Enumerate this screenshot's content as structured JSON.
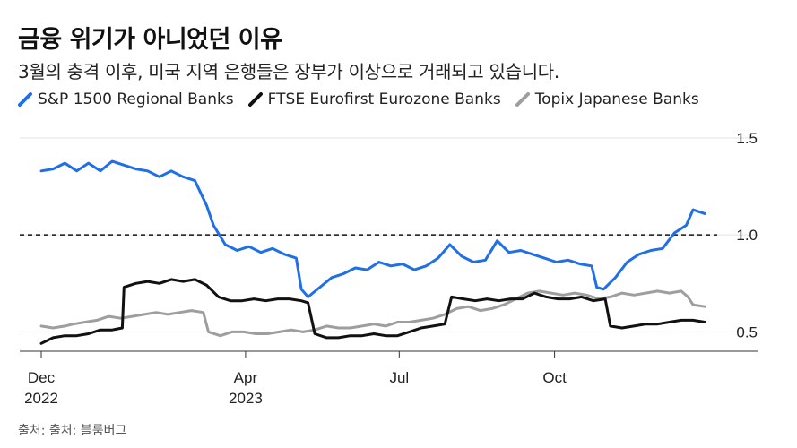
{
  "title": "금융 위기가 아니었던 이유",
  "subtitle": "3월의 충격 이후, 미국 지역 은행들은 장부가 이상으로 거래되고 있습니다.",
  "source": "출처: 출처: 블룸버그",
  "chart_data": {
    "type": "line",
    "title": "금융 위기가 아니었던 이유",
    "subtitle": "3월의 충격 이후, 미국 지역 은행들은 장부가 이상으로 거래되고 있습니다.",
    "ylim": [
      0.4,
      1.5
    ],
    "y_ticks": [
      1.5,
      1.0,
      0.5
    ],
    "y_tick_labels": [
      "1.5",
      "1.0",
      "0.5"
    ],
    "x_ticks": [
      {
        "date": "2022-12-01",
        "label": "Dec",
        "sublabel": "2022"
      },
      {
        "date": "2023-04-01",
        "label": "Apr",
        "sublabel": "2023"
      },
      {
        "date": "2023-07-01",
        "label": "Jul",
        "sublabel": ""
      },
      {
        "date": "2023-10-01",
        "label": "Oct",
        "sublabel": ""
      }
    ],
    "reference_line": {
      "y": 1.0,
      "style": "dashed"
    },
    "grid": true,
    "legend_position": "top-left",
    "series": [
      {
        "name": "S&P 1500 Regional Banks",
        "color": "#1f6fe8",
        "points": [
          [
            "2022-12-01",
            1.33
          ],
          [
            "2022-12-08",
            1.34
          ],
          [
            "2022-12-15",
            1.37
          ],
          [
            "2022-12-22",
            1.33
          ],
          [
            "2022-12-29",
            1.37
          ],
          [
            "2023-01-05",
            1.33
          ],
          [
            "2023-01-12",
            1.38
          ],
          [
            "2023-01-19",
            1.36
          ],
          [
            "2023-01-26",
            1.34
          ],
          [
            "2023-02-02",
            1.33
          ],
          [
            "2023-02-09",
            1.3
          ],
          [
            "2023-02-16",
            1.33
          ],
          [
            "2023-02-23",
            1.3
          ],
          [
            "2023-03-02",
            1.28
          ],
          [
            "2023-03-09",
            1.15
          ],
          [
            "2023-03-13",
            1.05
          ],
          [
            "2023-03-20",
            0.95
          ],
          [
            "2023-03-27",
            0.92
          ],
          [
            "2023-04-03",
            0.94
          ],
          [
            "2023-04-10",
            0.91
          ],
          [
            "2023-04-17",
            0.93
          ],
          [
            "2023-04-24",
            0.9
          ],
          [
            "2023-05-01",
            0.88
          ],
          [
            "2023-05-04",
            0.72
          ],
          [
            "2023-05-08",
            0.68
          ],
          [
            "2023-05-15",
            0.73
          ],
          [
            "2023-05-22",
            0.78
          ],
          [
            "2023-05-29",
            0.8
          ],
          [
            "2023-06-05",
            0.83
          ],
          [
            "2023-06-12",
            0.82
          ],
          [
            "2023-06-19",
            0.86
          ],
          [
            "2023-06-26",
            0.84
          ],
          [
            "2023-07-03",
            0.85
          ],
          [
            "2023-07-10",
            0.82
          ],
          [
            "2023-07-17",
            0.84
          ],
          [
            "2023-07-24",
            0.88
          ],
          [
            "2023-07-31",
            0.95
          ],
          [
            "2023-08-07",
            0.89
          ],
          [
            "2023-08-14",
            0.86
          ],
          [
            "2023-08-21",
            0.87
          ],
          [
            "2023-08-28",
            0.97
          ],
          [
            "2023-09-04",
            0.91
          ],
          [
            "2023-09-11",
            0.92
          ],
          [
            "2023-09-18",
            0.9
          ],
          [
            "2023-09-25",
            0.88
          ],
          [
            "2023-10-02",
            0.86
          ],
          [
            "2023-10-09",
            0.87
          ],
          [
            "2023-10-16",
            0.85
          ],
          [
            "2023-10-23",
            0.84
          ],
          [
            "2023-10-26",
            0.73
          ],
          [
            "2023-10-30",
            0.72
          ],
          [
            "2023-11-06",
            0.78
          ],
          [
            "2023-11-13",
            0.86
          ],
          [
            "2023-11-20",
            0.9
          ],
          [
            "2023-11-27",
            0.92
          ],
          [
            "2023-12-04",
            0.93
          ],
          [
            "2023-12-11",
            1.01
          ],
          [
            "2023-12-18",
            1.05
          ],
          [
            "2023-12-22",
            1.13
          ],
          [
            "2023-12-29",
            1.11
          ]
        ]
      },
      {
        "name": "FTSE Eurofirst Eurozone Banks",
        "color": "#111111",
        "points": [
          [
            "2022-12-01",
            0.44
          ],
          [
            "2022-12-08",
            0.47
          ],
          [
            "2022-12-15",
            0.48
          ],
          [
            "2022-12-22",
            0.48
          ],
          [
            "2022-12-29",
            0.49
          ],
          [
            "2023-01-05",
            0.51
          ],
          [
            "2023-01-12",
            0.51
          ],
          [
            "2023-01-18",
            0.52
          ],
          [
            "2023-01-19",
            0.73
          ],
          [
            "2023-01-26",
            0.75
          ],
          [
            "2023-02-02",
            0.76
          ],
          [
            "2023-02-09",
            0.75
          ],
          [
            "2023-02-16",
            0.77
          ],
          [
            "2023-02-23",
            0.76
          ],
          [
            "2023-03-02",
            0.77
          ],
          [
            "2023-03-09",
            0.74
          ],
          [
            "2023-03-16",
            0.68
          ],
          [
            "2023-03-23",
            0.66
          ],
          [
            "2023-03-30",
            0.66
          ],
          [
            "2023-04-06",
            0.67
          ],
          [
            "2023-04-13",
            0.66
          ],
          [
            "2023-04-20",
            0.67
          ],
          [
            "2023-04-27",
            0.67
          ],
          [
            "2023-05-04",
            0.66
          ],
          [
            "2023-05-08",
            0.65
          ],
          [
            "2023-05-12",
            0.49
          ],
          [
            "2023-05-19",
            0.47
          ],
          [
            "2023-05-26",
            0.47
          ],
          [
            "2023-06-02",
            0.48
          ],
          [
            "2023-06-09",
            0.48
          ],
          [
            "2023-06-16",
            0.49
          ],
          [
            "2023-06-23",
            0.48
          ],
          [
            "2023-06-30",
            0.48
          ],
          [
            "2023-07-07",
            0.5
          ],
          [
            "2023-07-14",
            0.52
          ],
          [
            "2023-07-21",
            0.53
          ],
          [
            "2023-07-28",
            0.54
          ],
          [
            "2023-08-01",
            0.68
          ],
          [
            "2023-08-08",
            0.67
          ],
          [
            "2023-08-15",
            0.66
          ],
          [
            "2023-08-22",
            0.67
          ],
          [
            "2023-08-29",
            0.66
          ],
          [
            "2023-09-05",
            0.67
          ],
          [
            "2023-09-12",
            0.67
          ],
          [
            "2023-09-19",
            0.7
          ],
          [
            "2023-09-26",
            0.68
          ],
          [
            "2023-10-03",
            0.67
          ],
          [
            "2023-10-10",
            0.67
          ],
          [
            "2023-10-17",
            0.68
          ],
          [
            "2023-10-24",
            0.66
          ],
          [
            "2023-10-31",
            0.67
          ],
          [
            "2023-11-03",
            0.53
          ],
          [
            "2023-11-10",
            0.52
          ],
          [
            "2023-11-17",
            0.53
          ],
          [
            "2023-11-24",
            0.54
          ],
          [
            "2023-12-01",
            0.54
          ],
          [
            "2023-12-08",
            0.55
          ],
          [
            "2023-12-15",
            0.56
          ],
          [
            "2023-12-22",
            0.56
          ],
          [
            "2023-12-29",
            0.55
          ]
        ]
      },
      {
        "name": "Topix Japanese Banks",
        "color": "#9e9e9e",
        "points": [
          [
            "2022-12-01",
            0.53
          ],
          [
            "2022-12-08",
            0.52
          ],
          [
            "2022-12-15",
            0.53
          ],
          [
            "2022-12-20",
            0.54
          ],
          [
            "2022-12-27",
            0.55
          ],
          [
            "2023-01-03",
            0.56
          ],
          [
            "2023-01-10",
            0.58
          ],
          [
            "2023-01-17",
            0.57
          ],
          [
            "2023-01-24",
            0.58
          ],
          [
            "2023-01-31",
            0.59
          ],
          [
            "2023-02-07",
            0.6
          ],
          [
            "2023-02-14",
            0.59
          ],
          [
            "2023-02-21",
            0.6
          ],
          [
            "2023-02-28",
            0.61
          ],
          [
            "2023-03-07",
            0.6
          ],
          [
            "2023-03-10",
            0.5
          ],
          [
            "2023-03-17",
            0.48
          ],
          [
            "2023-03-24",
            0.5
          ],
          [
            "2023-03-31",
            0.5
          ],
          [
            "2023-04-07",
            0.49
          ],
          [
            "2023-04-14",
            0.49
          ],
          [
            "2023-04-21",
            0.5
          ],
          [
            "2023-04-28",
            0.51
          ],
          [
            "2023-05-05",
            0.5
          ],
          [
            "2023-05-12",
            0.51
          ],
          [
            "2023-05-19",
            0.53
          ],
          [
            "2023-05-26",
            0.52
          ],
          [
            "2023-06-02",
            0.52
          ],
          [
            "2023-06-09",
            0.53
          ],
          [
            "2023-06-16",
            0.54
          ],
          [
            "2023-06-23",
            0.53
          ],
          [
            "2023-06-30",
            0.55
          ],
          [
            "2023-07-07",
            0.55
          ],
          [
            "2023-07-14",
            0.56
          ],
          [
            "2023-07-21",
            0.57
          ],
          [
            "2023-07-28",
            0.59
          ],
          [
            "2023-08-04",
            0.62
          ],
          [
            "2023-08-11",
            0.63
          ],
          [
            "2023-08-18",
            0.61
          ],
          [
            "2023-08-25",
            0.62
          ],
          [
            "2023-09-01",
            0.64
          ],
          [
            "2023-09-08",
            0.67
          ],
          [
            "2023-09-15",
            0.7
          ],
          [
            "2023-09-22",
            0.71
          ],
          [
            "2023-09-29",
            0.7
          ],
          [
            "2023-10-06",
            0.69
          ],
          [
            "2023-10-13",
            0.7
          ],
          [
            "2023-10-20",
            0.69
          ],
          [
            "2023-10-27",
            0.67
          ],
          [
            "2023-11-03",
            0.68
          ],
          [
            "2023-11-10",
            0.7
          ],
          [
            "2023-11-17",
            0.69
          ],
          [
            "2023-11-24",
            0.7
          ],
          [
            "2023-12-01",
            0.71
          ],
          [
            "2023-12-08",
            0.7
          ],
          [
            "2023-12-15",
            0.71
          ],
          [
            "2023-12-19",
            0.68
          ],
          [
            "2023-12-22",
            0.64
          ],
          [
            "2023-12-29",
            0.63
          ]
        ]
      }
    ]
  }
}
